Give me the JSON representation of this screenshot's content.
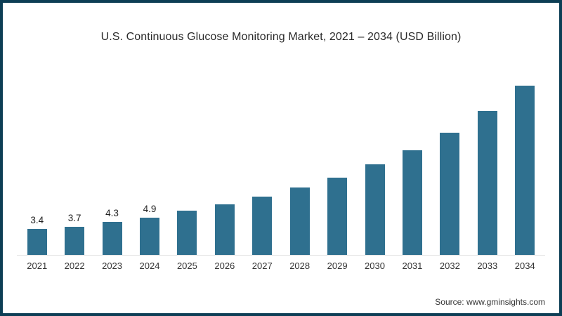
{
  "window": {
    "border_color": "#0d3e55",
    "background_color": "#ffffff"
  },
  "chart": {
    "title": "U.S. Continuous Glucose Monitoring Market, 2021 – 2034 (USD Billion)",
    "source": "Source: www.gminsights.com",
    "bar_color": "#2f708f",
    "axis_line_color": "#e4e4e4"
  },
  "chart_data": {
    "type": "bar",
    "title": "U.S. Continuous Glucose Monitoring Market, 2021 – 2034 (USD Billion)",
    "categories": [
      "2021",
      "2022",
      "2023",
      "2024",
      "2025",
      "2026",
      "2027",
      "2028",
      "2029",
      "2030",
      "2031",
      "2032",
      "2033",
      "2034"
    ],
    "values": [
      3.4,
      3.7,
      4.3,
      4.9,
      5.8,
      6.6,
      7.6,
      8.8,
      10.1,
      11.8,
      13.7,
      16.0,
      18.8,
      22.1
    ],
    "data_labels": [
      "3.4",
      "3.7",
      "4.3",
      "4.9",
      "",
      "",
      "",
      "",
      "",
      "",
      "",
      "",
      "",
      ""
    ],
    "xlabel": "",
    "ylabel": "USD Billion",
    "ylim": [
      0,
      24
    ],
    "grid": false,
    "legend": false
  }
}
